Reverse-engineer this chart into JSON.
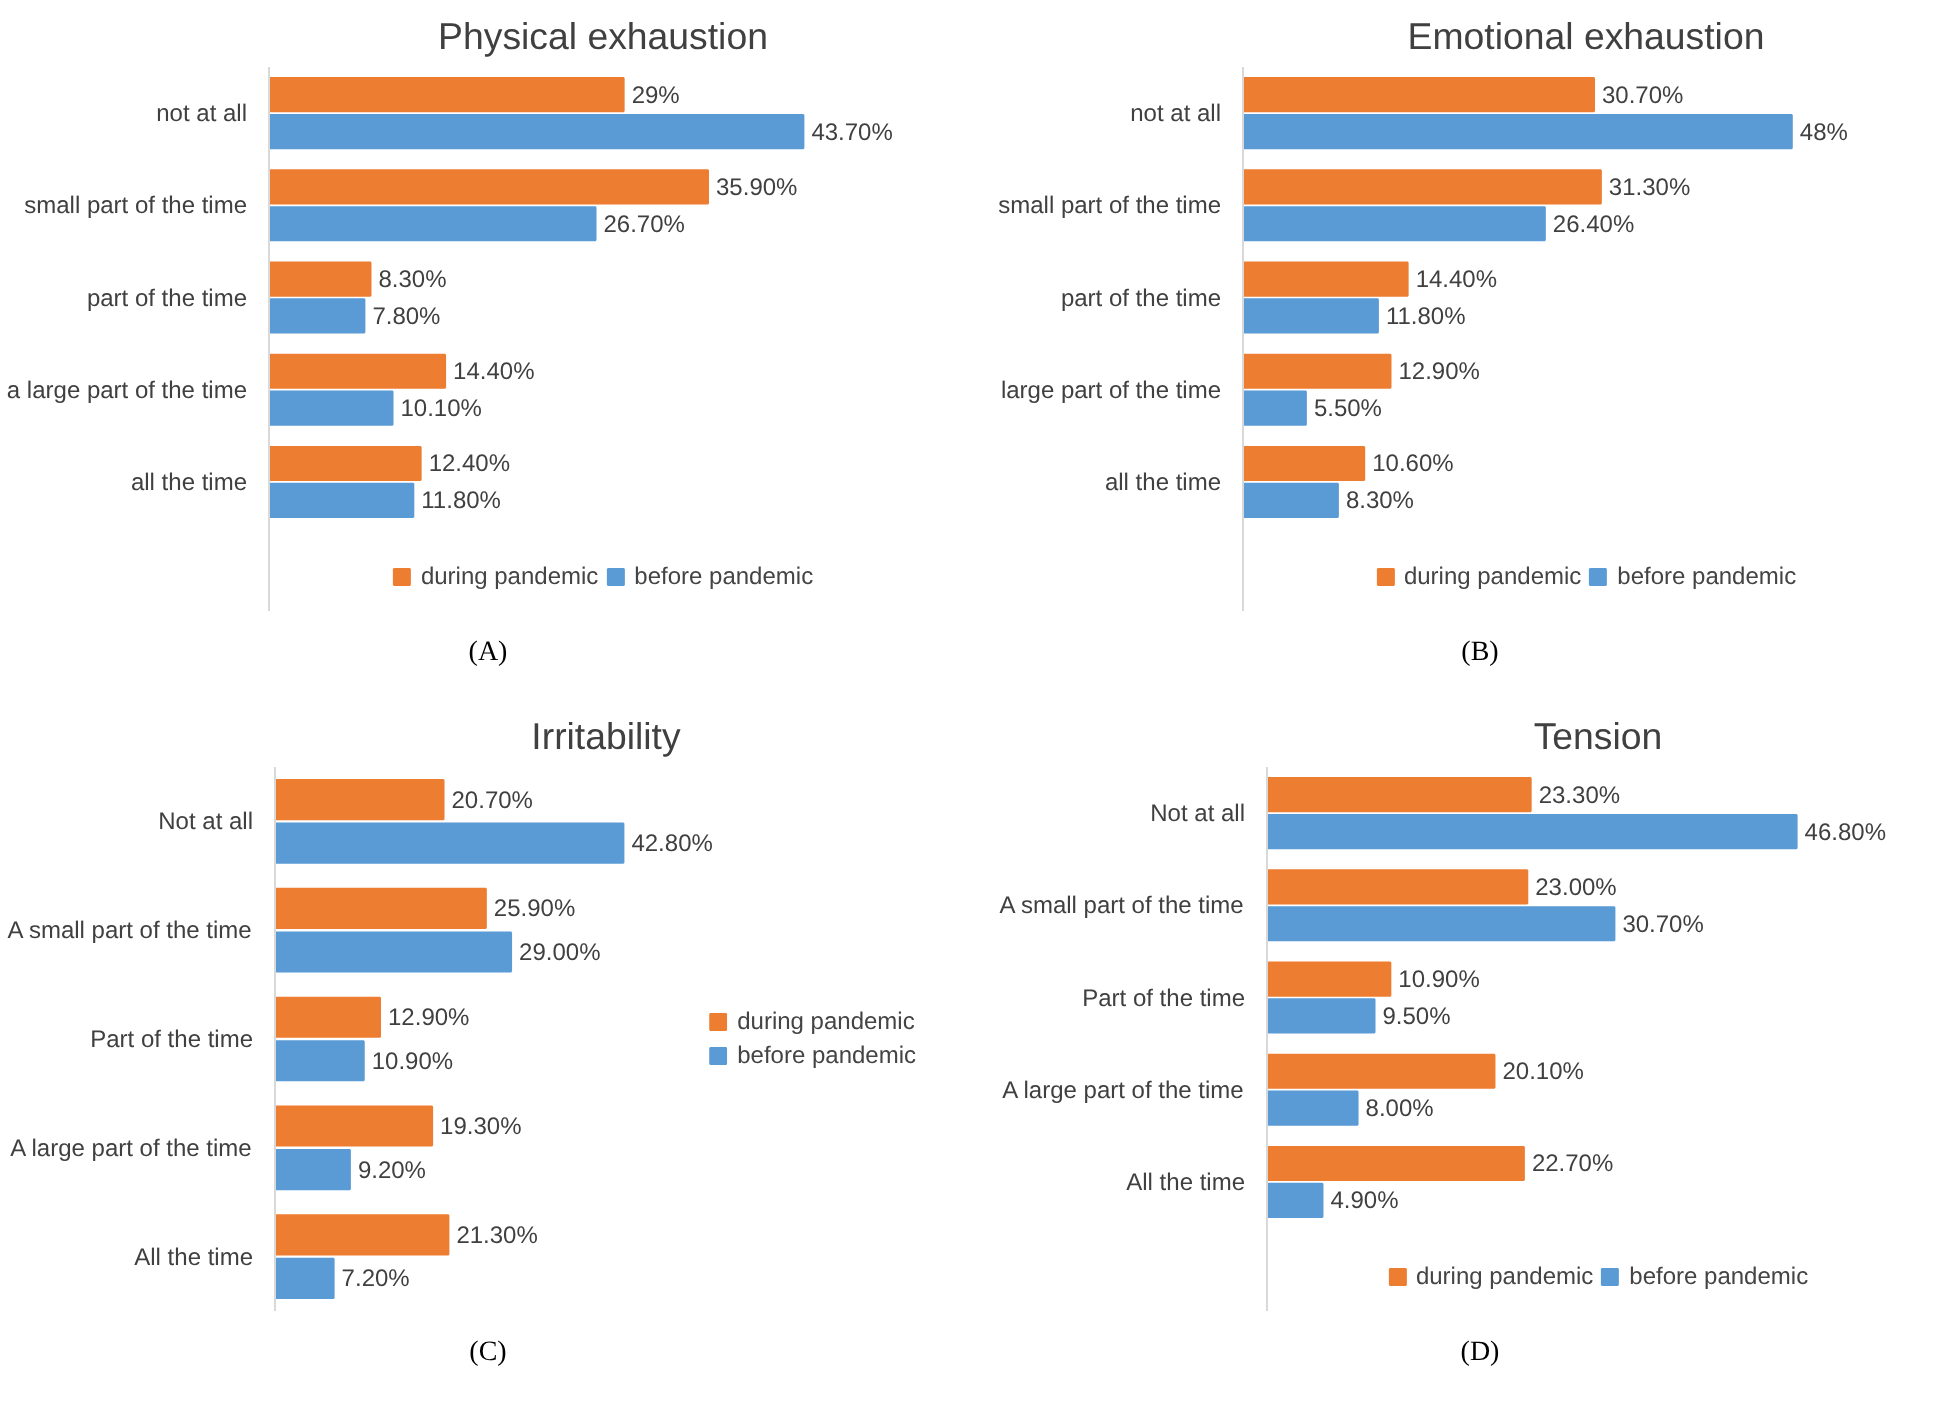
{
  "chart_data": [
    {
      "type": "bar",
      "orientation": "horizontal",
      "title": "Physical exhaustion",
      "categories": [
        "not at all",
        "small part of the time",
        "part of the time",
        "a large part of the time",
        "all the time"
      ],
      "legend": "bottom",
      "annotations": [
        "(A)"
      ],
      "series": [
        {
          "name": "during pandemic",
          "color": "#ed7d31",
          "values": [
            29,
            35.9,
            8.3,
            14.4,
            12.4
          ],
          "value_labels": [
            "29%",
            "35.90%",
            "8.30%",
            "14.40%",
            "12.40%"
          ]
        },
        {
          "name": "before pandemic",
          "color": "#5b9bd5",
          "values": [
            43.7,
            26.7,
            7.8,
            10.1,
            11.8
          ],
          "value_labels": [
            "43.70%",
            "26.70%",
            "7.80%",
            "10.10%",
            "11.80%"
          ]
        }
      ]
    },
    {
      "type": "bar",
      "orientation": "horizontal",
      "title": "Emotional exhaustion",
      "categories": [
        "not at all",
        "small part of the time",
        "part of the time",
        "large part of the time",
        "all the time"
      ],
      "legend": "bottom",
      "annotations": [
        "(B)"
      ],
      "series": [
        {
          "name": "during pandemic",
          "color": "#ed7d31",
          "values": [
            30.7,
            31.3,
            14.4,
            12.9,
            10.6
          ],
          "value_labels": [
            "30.70%",
            "31.30%",
            "14.40%",
            "12.90%",
            "10.60%"
          ]
        },
        {
          "name": "before pandemic",
          "color": "#5b9bd5",
          "values": [
            48,
            26.4,
            11.8,
            5.5,
            8.3
          ],
          "value_labels": [
            "48%",
            "26.40%",
            "11.80%",
            "5.50%",
            "8.30%"
          ]
        }
      ]
    },
    {
      "type": "bar",
      "orientation": "horizontal",
      "title": "Irritability",
      "categories": [
        "Not at all",
        "A small part of the time",
        "Part of the time",
        "A large part of the time",
        "All the time"
      ],
      "legend": "right",
      "annotations": [
        "(C)"
      ],
      "series": [
        {
          "name": "during pandemic",
          "color": "#ed7d31",
          "values": [
            20.7,
            25.9,
            12.9,
            19.3,
            21.3
          ],
          "value_labels": [
            "20.70%",
            "25.90%",
            "12.90%",
            "19.30%",
            "21.30%"
          ]
        },
        {
          "name": "before pandemic",
          "color": "#5b9bd5",
          "values": [
            42.8,
            29.0,
            10.9,
            9.2,
            7.2
          ],
          "value_labels": [
            "42.80%",
            "29.00%",
            "10.90%",
            "9.20%",
            "7.20%"
          ]
        }
      ]
    },
    {
      "type": "bar",
      "orientation": "horizontal",
      "title": "Tension",
      "categories": [
        "Not at all",
        "A small part of the time",
        "Part of the time",
        "A large part of the time",
        "All the time"
      ],
      "legend": "bottom",
      "annotations": [
        "(D)"
      ],
      "series": [
        {
          "name": "during pandemic",
          "color": "#ed7d31",
          "values": [
            23.3,
            23.0,
            10.9,
            20.1,
            22.7
          ],
          "value_labels": [
            "23.30%",
            "23.00%",
            "10.90%",
            "20.10%",
            "22.70%"
          ]
        },
        {
          "name": "before pandemic",
          "color": "#5b9bd5",
          "values": [
            46.8,
            30.7,
            9.5,
            8.0,
            4.9
          ],
          "value_labels": [
            "46.80%",
            "30.70%",
            "9.50%",
            "8.00%",
            "4.90%"
          ]
        }
      ]
    }
  ]
}
